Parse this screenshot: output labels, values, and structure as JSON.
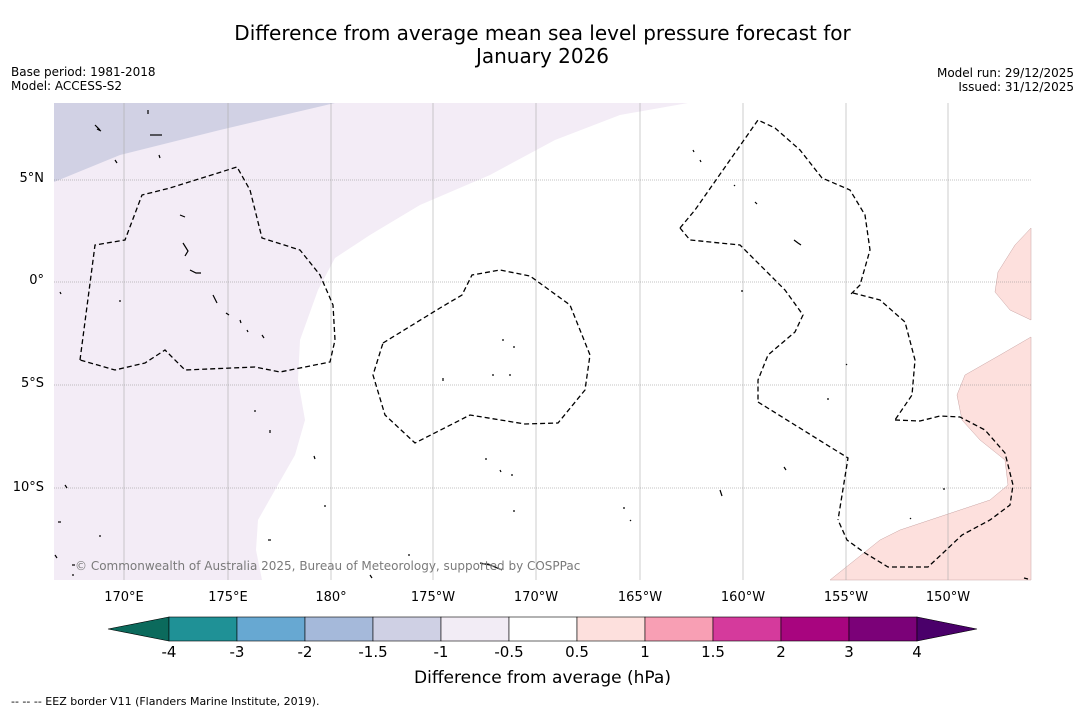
{
  "title_line1": "Difference from average mean sea level pressure forecast for",
  "title_line2": "January 2026",
  "base_period": "Base period: 1981-2018",
  "model": "Model: ACCESS-S2",
  "model_run": "Model run: 29/12/2025",
  "issued": "Issued: 31/12/2025",
  "lat_labels": [
    "5°N",
    "0°",
    "5°S",
    "10°S"
  ],
  "lon_labels": [
    "170°E",
    "175°E",
    "180°",
    "175°W",
    "170°W",
    "165°W",
    "160°W",
    "155°W",
    "150°W"
  ],
  "colorbar": {
    "title": "Difference from average (hPa)",
    "ticks": [
      "-4",
      "-3",
      "-2",
      "-1.5",
      "-1",
      "-0.5",
      "0.5",
      "1",
      "1.5",
      "2",
      "3",
      "4"
    ],
    "colors": [
      "#0b6a5c",
      "#1f9196",
      "#67a8d2",
      "#a5b9da",
      "#cfd0e4",
      "#f2ecf5",
      "#ffffff",
      "#fde0dd",
      "#f89fb4",
      "#d53a9c",
      "#a8057f",
      "#7b0178",
      "#4a006a"
    ]
  },
  "copyright": "© Commonwealth of Australia 2025, Bureau of Meteorology, supported by COSPPac",
  "eez_note": "--  --  -- EEZ border V11 (Flanders Marine Institute, 2019)."
}
